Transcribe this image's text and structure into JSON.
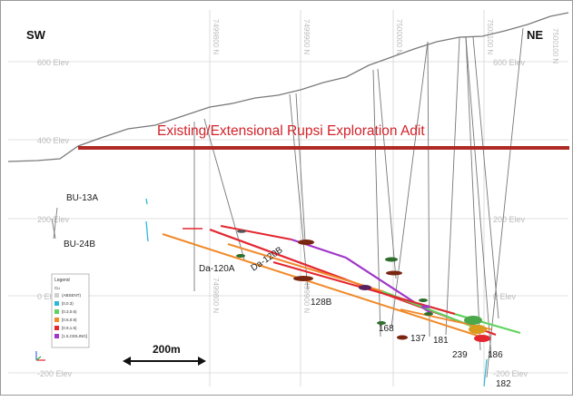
{
  "section": {
    "left_direction": "SW",
    "right_direction": "NE",
    "adit_label": "Existing/Extensional Rupsi Exploration Adit",
    "adit_color": "#b02a25",
    "title_color": "#d2232a"
  },
  "elevation_labels": {
    "e600": "600 Elev",
    "e400": "400 Elev",
    "e200": "200 Elev",
    "e0": "0 Elev",
    "em200": "-200 Elev"
  },
  "northing_labels": [
    "7499800 N",
    "7499900 N",
    "7500000 N",
    "7500100 N"
  ],
  "surface_holes": {
    "bu13a": "BU-13A",
    "bu24b": "BU-24B"
  },
  "drillhole_labels": {
    "da120a": "Da-120A",
    "da120b": "Da-120B",
    "h128b": "128B",
    "h168": "168",
    "h137": "137",
    "h181": "181",
    "h239": "239",
    "h186": "186",
    "h182": "182"
  },
  "scale_bar": {
    "label": "200m"
  },
  "legend": {
    "title": "Legend",
    "field": "Cu",
    "items": [
      {
        "label": "(ABSENT)",
        "color": "#cfcfcf"
      },
      {
        "label": "[0,0.3)",
        "color": "#2bb8d6"
      },
      {
        "label": "[0.3,0.6)",
        "color": "#5fd35f"
      },
      {
        "label": "[0.6,0.9)",
        "color": "#f08a2a"
      },
      {
        "label": "[0.9,1.5)",
        "color": "#e3262f"
      },
      {
        "label": "[1.5,CEILING]",
        "color": "#a035c9"
      }
    ]
  }
}
